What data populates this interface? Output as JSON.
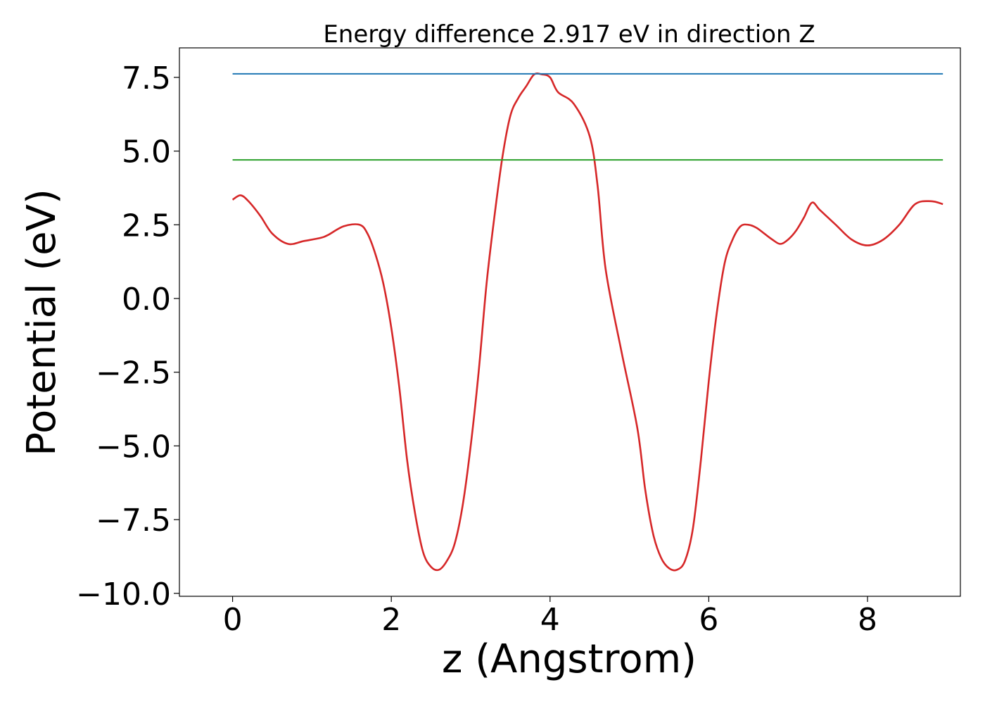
{
  "chart_data": {
    "type": "line",
    "title": "Energy difference 2.917 eV in direction Z",
    "xlabel": "z (Angstrom)",
    "ylabel": "Potential (eV)",
    "xlim": [
      -0.67,
      9.17
    ],
    "ylim": [
      -10.1,
      8.5
    ],
    "xticks": [
      0,
      2,
      4,
      6,
      8
    ],
    "xtick_labels": [
      "0",
      "2",
      "4",
      "6",
      "8"
    ],
    "yticks": [
      -10.0,
      -7.5,
      -5.0,
      -2.5,
      0.0,
      2.5,
      5.0,
      7.5
    ],
    "ytick_labels": [
      "−10.0",
      "−7.5",
      "−5.0",
      "−2.5",
      "0.0",
      "2.5",
      "5.0",
      "7.5"
    ],
    "grid": false,
    "series": [
      {
        "color": "#d62728",
        "x": [
          0,
          0.1,
          0.2,
          0.35,
          0.5,
          0.7,
          0.9,
          1.1,
          1.2,
          1.4,
          1.6,
          1.7,
          1.8,
          1.9,
          2.0,
          2.1,
          2.2,
          2.3,
          2.4,
          2.5,
          2.6,
          2.7,
          2.8,
          2.9,
          3.0,
          3.1,
          3.2,
          3.3,
          3.4,
          3.5,
          3.6,
          3.7,
          3.8,
          3.9,
          4.0,
          4.1,
          4.3,
          4.5,
          4.6,
          4.7,
          4.9,
          5.1,
          5.2,
          5.3,
          5.4,
          5.5,
          5.6,
          5.7,
          5.8,
          5.9,
          6.0,
          6.1,
          6.2,
          6.3,
          6.4,
          6.5,
          6.6,
          6.7,
          6.8,
          6.9,
          7.0,
          7.1,
          7.2,
          7.3,
          7.4,
          7.6,
          7.8,
          8.0,
          8.2,
          8.4,
          8.6,
          8.8,
          8.95
        ],
        "y": [
          3.35,
          3.5,
          3.3,
          2.8,
          2.2,
          1.85,
          1.95,
          2.05,
          2.15,
          2.45,
          2.5,
          2.2,
          1.5,
          0.5,
          -1.0,
          -3.0,
          -5.5,
          -7.3,
          -8.6,
          -9.1,
          -9.2,
          -8.9,
          -8.3,
          -7.0,
          -5.0,
          -2.5,
          0.5,
          2.8,
          4.8,
          6.2,
          6.8,
          7.2,
          7.6,
          7.6,
          7.5,
          7.0,
          6.6,
          5.5,
          3.8,
          1.0,
          -1.8,
          -4.4,
          -6.5,
          -8.0,
          -8.8,
          -9.15,
          -9.2,
          -8.9,
          -7.8,
          -5.5,
          -2.8,
          -0.5,
          1.2,
          2.0,
          2.45,
          2.5,
          2.4,
          2.2,
          2.0,
          1.85,
          2.0,
          2.3,
          2.75,
          3.25,
          3.0,
          2.5,
          2.0,
          1.8,
          2.0,
          2.5,
          3.2,
          3.3,
          3.2
        ]
      },
      {
        "color": "#1f77b4",
        "x": [
          0,
          8.95
        ],
        "y": [
          7.62,
          7.62
        ]
      },
      {
        "color": "#2ca02c",
        "x": [
          0,
          8.95
        ],
        "y": [
          4.7,
          4.7
        ]
      }
    ]
  }
}
